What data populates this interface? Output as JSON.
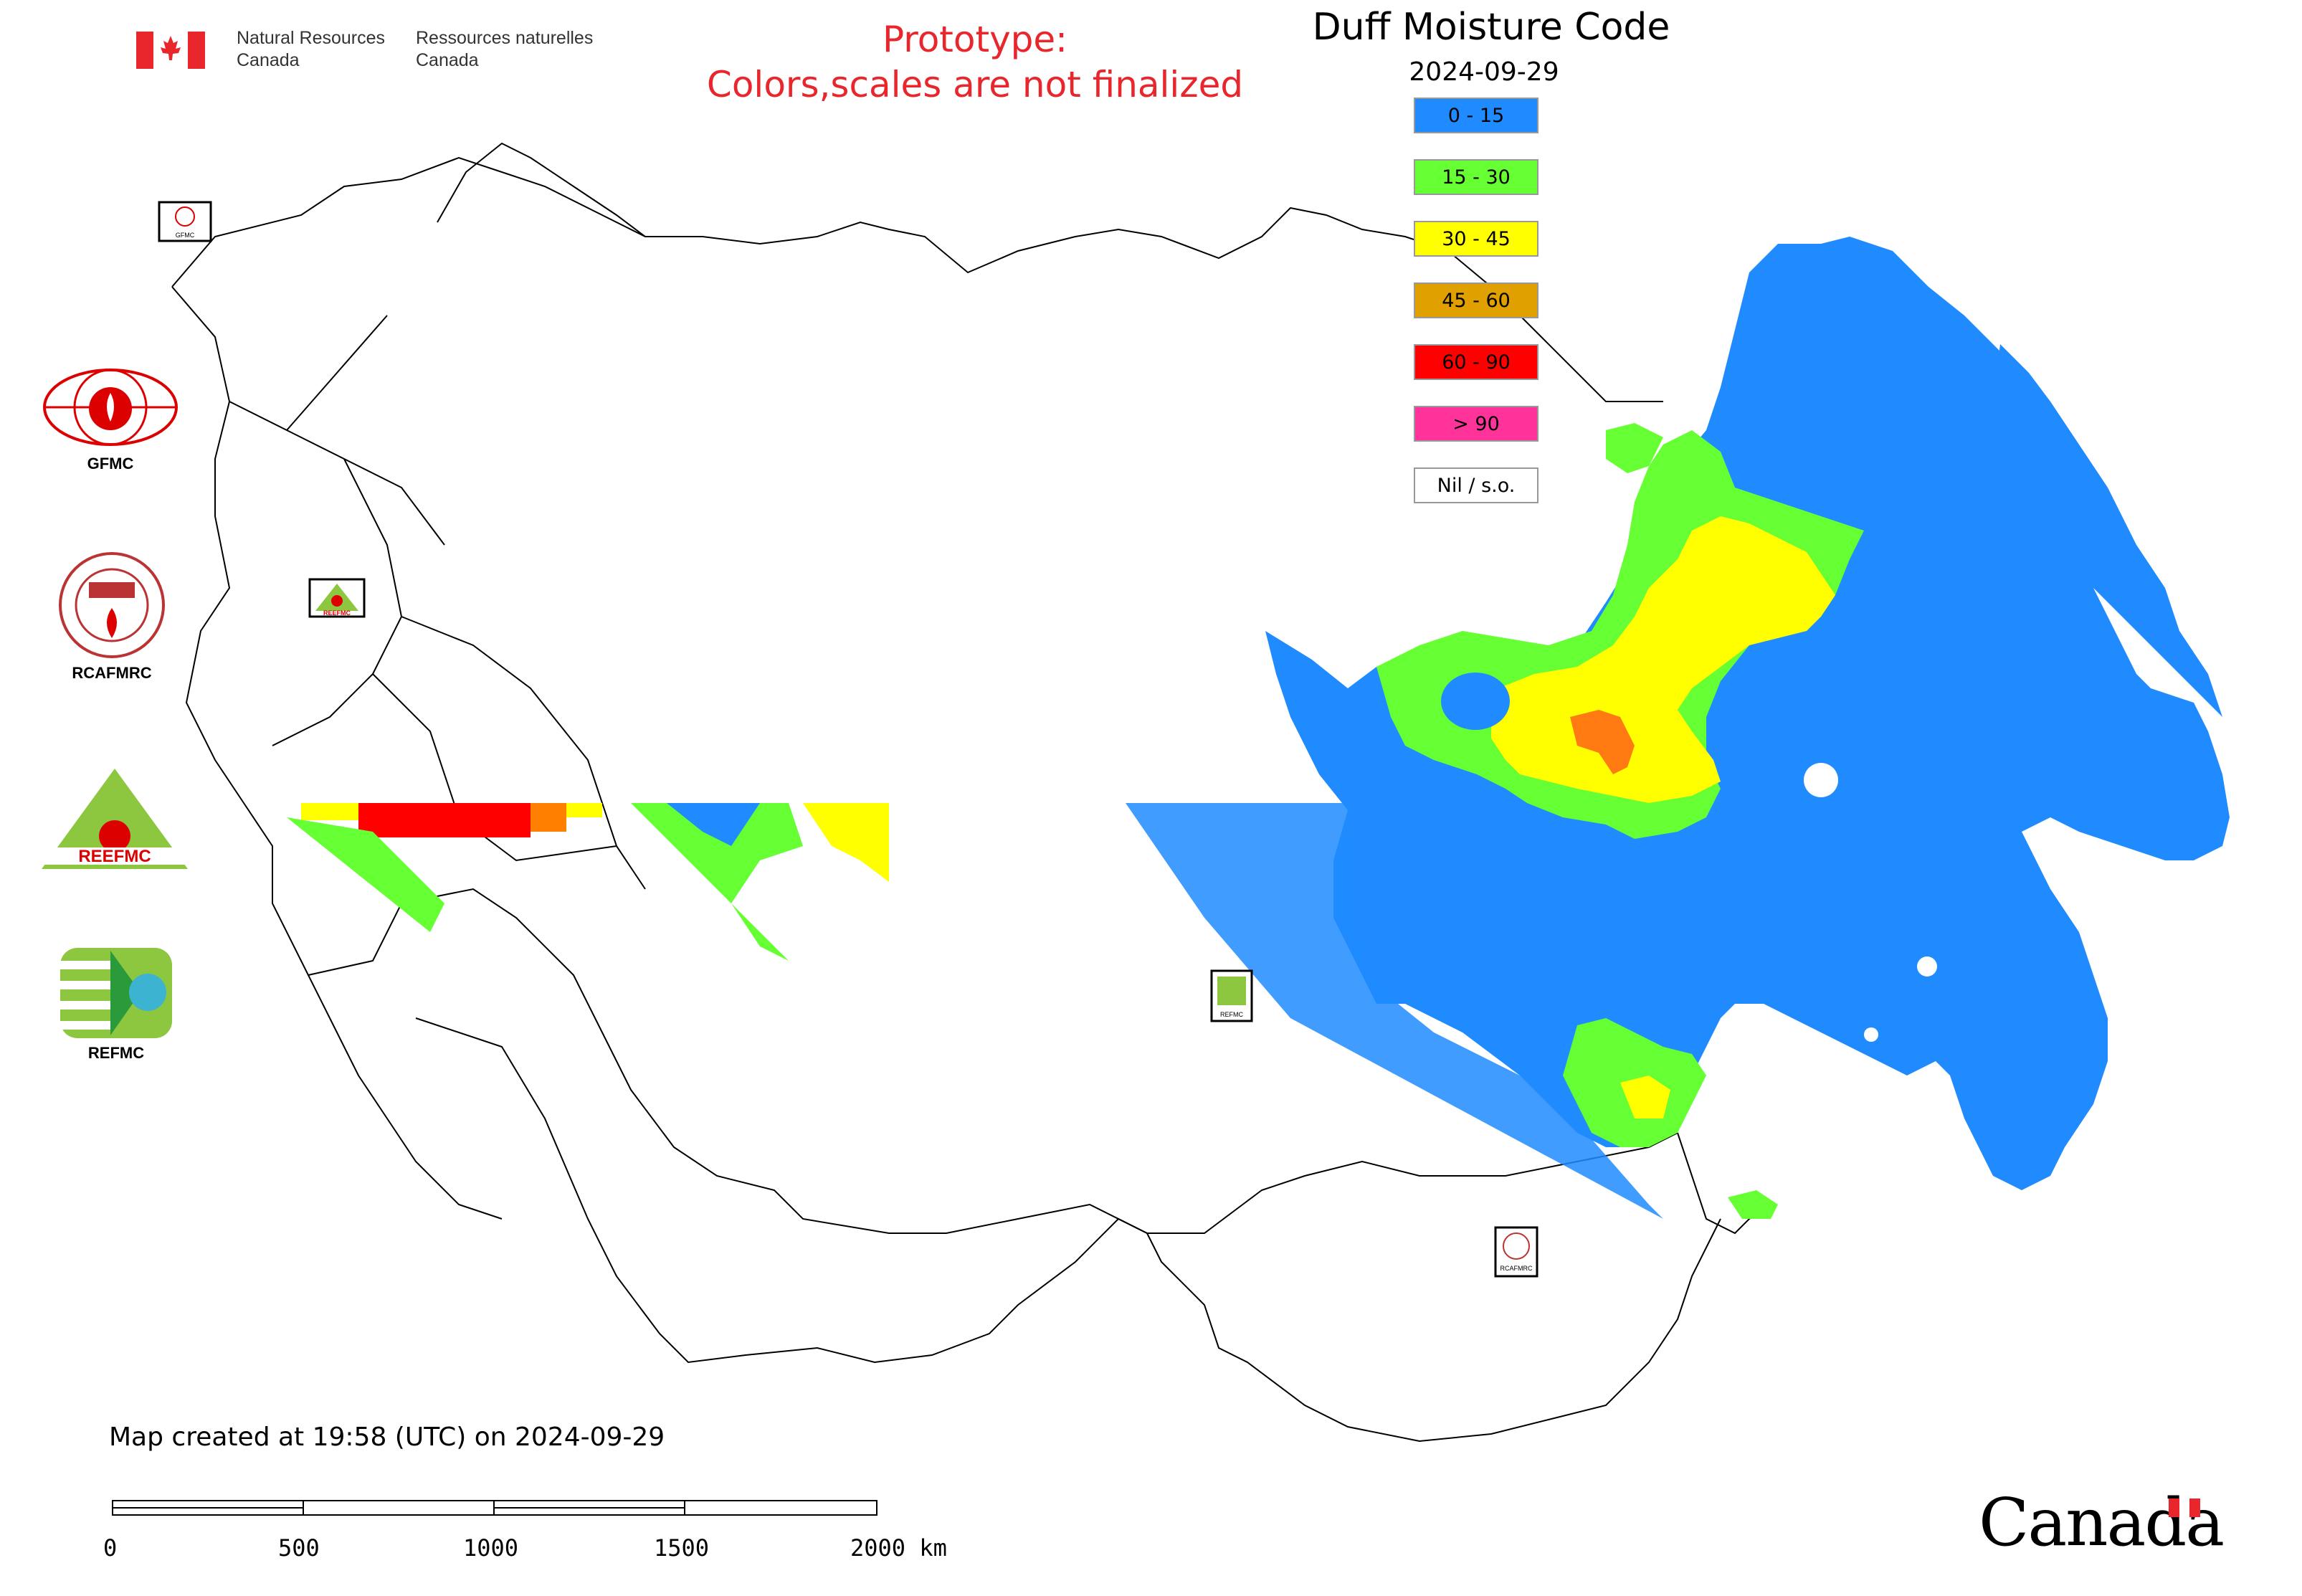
{
  "header": {
    "nrcan_en_line1": "Natural Resources",
    "nrcan_en_line2": "Canada",
    "nrcan_fr_line1": "Ressources naturelles",
    "nrcan_fr_line2": "Canada",
    "prototype_line1": "Prototype:",
    "prototype_line2": "Colors,scales are not finalized"
  },
  "map": {
    "title": "Duff Moisture Code",
    "date": "2024-09-29",
    "legend": [
      {
        "label": "0 - 15",
        "color": "#1f8bff"
      },
      {
        "label": "15 - 30",
        "color": "#66ff33"
      },
      {
        "label": "30 - 45",
        "color": "#ffff00"
      },
      {
        "label": "45 - 60",
        "color": "#e0a000"
      },
      {
        "label": "60 - 90",
        "color": "#ff0000"
      },
      {
        "label": "> 90",
        "color": "#ff3399"
      },
      {
        "label": "Nil / s.o.",
        "color": "#ffffff"
      }
    ]
  },
  "logos": [
    {
      "label": "GFMC",
      "icon": "gfmc-logo"
    },
    {
      "label": "RCAFMRC",
      "icon": "rcafmrc-logo"
    },
    {
      "label": "REEFMC",
      "icon": "reefmc-logo"
    },
    {
      "label": "REFMC",
      "icon": "refmc-logo"
    }
  ],
  "inset_logos": {
    "gfmc": "GFMC",
    "reefmc": "REEFMC",
    "refmc": "REFMC",
    "rcafmrc": "RCAFMRC"
  },
  "footer": {
    "created": "Map created at 19:58 (UTC) on 2024-09-29",
    "scale_labels": [
      "0",
      "500",
      "1000",
      "1500",
      "2000 km"
    ],
    "wordmark": "Canada"
  }
}
